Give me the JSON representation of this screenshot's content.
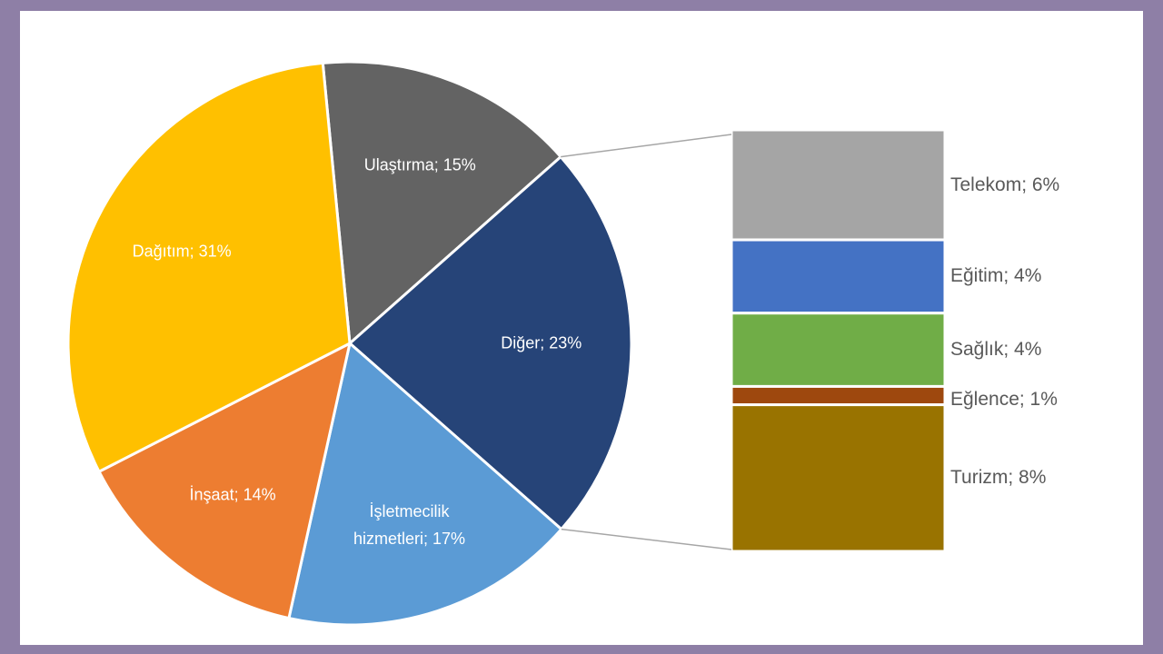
{
  "chart_data": [
    {
      "type": "pie",
      "values": [
        15,
        23,
        17,
        14,
        31
      ],
      "value_labels": [
        "Ulaştırma; 15%",
        "Diğer; 23%",
        "İşletmecilik hizmetleri; 17%",
        "İnşaat; 14%",
        "Dağıtım; 31%"
      ],
      "colors": [
        "#636363",
        "#264478",
        "#5b9bd5",
        "#ed7d31",
        "#ffc000"
      ]
    },
    {
      "type": "bar",
      "values": [
        6,
        4,
        4,
        1,
        8
      ],
      "value_labels": [
        "Telekom; 6%",
        "Eğitim; 4%",
        "Sağlık; 4%",
        "Eğlence; 1%",
        "Turizm; 8%"
      ],
      "colors": [
        "#a5a5a5",
        "#4472c4",
        "#70ad47",
        "#9e480e",
        "#997300"
      ]
    }
  ]
}
